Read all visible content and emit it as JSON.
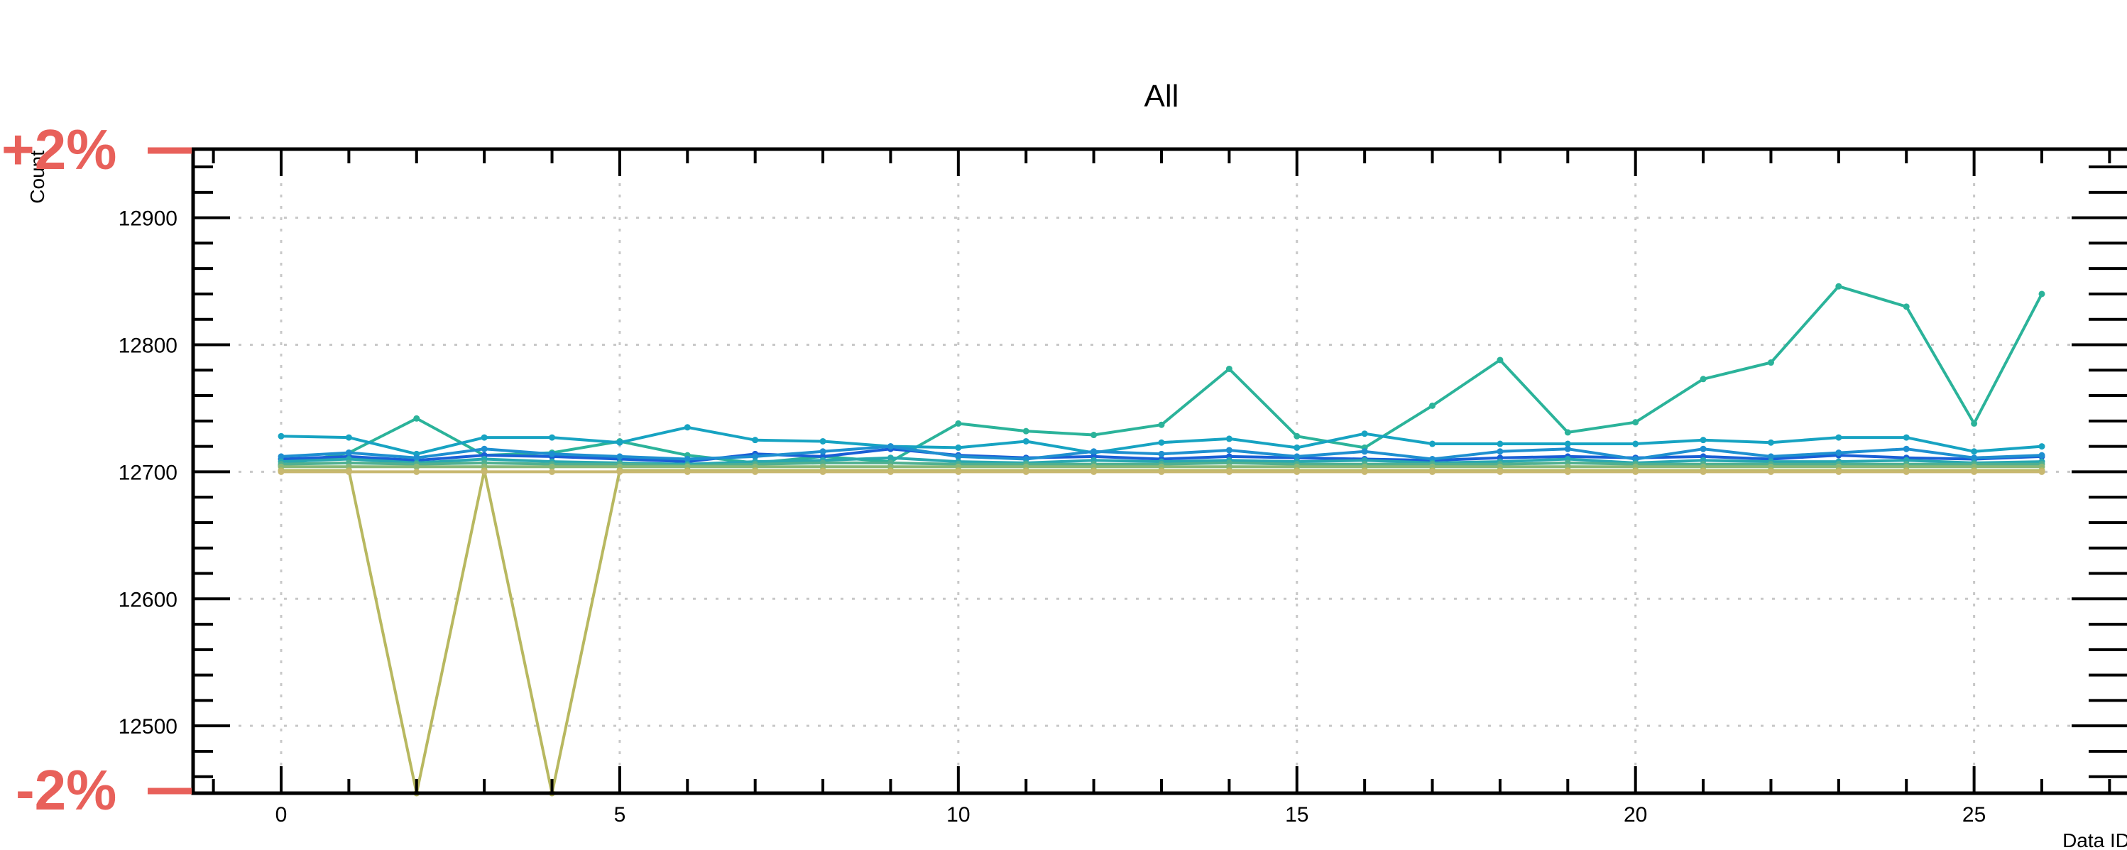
{
  "chart_data": {
    "type": "line",
    "title": "All",
    "xlabel": "Data ID",
    "ylabel": "Count",
    "xlim": [
      -1.3,
      27.3
    ],
    "ylim": [
      12447,
      12954
    ],
    "xticks": [
      0,
      5,
      10,
      15,
      20,
      25
    ],
    "yticks": [
      12500,
      12600,
      12700,
      12800,
      12900
    ],
    "xtick_labels": [
      "0",
      "5",
      "10",
      "15",
      "20",
      "25"
    ],
    "ytick_labels": [
      "12500",
      "12600",
      "12700",
      "12800",
      "12900"
    ],
    "grid": true,
    "band_labels": {
      "upper": "+2%",
      "lower": "-2%",
      "color": "#e8605a"
    },
    "colors": {
      "teal": "#2bb39a",
      "cyan": "#1aa6c4",
      "blue": "#1a5fd6",
      "olive": "#b8b860",
      "gold": "#c8b870"
    },
    "series": [
      {
        "color": "#2bb39a",
        "values": [
          12705,
          12715,
          12742,
          12713,
          12715,
          12724,
          12713,
          12707,
          12712,
          12708,
          12738,
          12732,
          12729,
          12737,
          12781,
          12728,
          12719,
          12752,
          12788,
          12731,
          12739,
          12773,
          12786,
          12846,
          12830,
          12738,
          12840
        ]
      },
      {
        "color": "#17a3c2",
        "values": [
          12728,
          12727,
          12714,
          12727,
          12727,
          12723,
          12735,
          12725,
          12724,
          12720,
          12719,
          12724,
          12715,
          12723,
          12726,
          12719,
          12730,
          12722,
          12722,
          12722,
          12722,
          12725,
          12723,
          12727,
          12727,
          12716,
          12720
        ]
      },
      {
        "color": "#1a5fd6",
        "values": [
          12710,
          12712,
          12709,
          12713,
          12712,
          12710,
          12708,
          12714,
          12712,
          12718,
          12713,
          12711,
          12712,
          12710,
          12712,
          12711,
          12710,
          12709,
          12711,
          12712,
          12711,
          12712,
          12710,
          12713,
          12711,
          12710,
          12712
        ]
      },
      {
        "color": "#1e8fd0",
        "values": [
          12712,
          12715,
          12711,
          12718,
          12714,
          12712,
          12710,
          12712,
          12716,
          12720,
          12712,
          12710,
          12716,
          12714,
          12717,
          12712,
          12716,
          12710,
          12716,
          12718,
          12710,
          12718,
          12712,
          12715,
          12718,
          12711,
          12713
        ]
      },
      {
        "color": "#28a8b0",
        "values": [
          12708,
          12710,
          12707,
          12710,
          12708,
          12707,
          12706,
          12708,
          12709,
          12711,
          12708,
          12707,
          12709,
          12708,
          12709,
          12708,
          12709,
          12707,
          12708,
          12710,
          12707,
          12709,
          12708,
          12708,
          12709,
          12707,
          12708
        ]
      },
      {
        "color": "#50b090",
        "values": [
          12706,
          12707,
          12706,
          12707,
          12706,
          12706,
          12705,
          12706,
          12707,
          12707,
          12706,
          12706,
          12706,
          12706,
          12707,
          12706,
          12706,
          12706,
          12706,
          12707,
          12706,
          12706,
          12706,
          12706,
          12706,
          12706,
          12706
        ]
      },
      {
        "color": "#8ab878",
        "values": [
          12704,
          12704,
          12704,
          12704,
          12704,
          12704,
          12704,
          12704,
          12704,
          12704,
          12704,
          12704,
          12704,
          12704,
          12704,
          12704,
          12704,
          12704,
          12704,
          12704,
          12704,
          12704,
          12704,
          12704,
          12704,
          12704,
          12704
        ]
      },
      {
        "color": "#b8b860",
        "values": [
          12701,
          12701,
          12447,
          12701,
          12447,
          12701,
          12701,
          12701,
          12701,
          12701,
          12701,
          12701,
          12701,
          12701,
          12701,
          12701,
          12701,
          12701,
          12701,
          12701,
          12701,
          12701,
          12701,
          12701,
          12701,
          12701,
          12701
        ]
      },
      {
        "color": "#c8b870",
        "values": [
          12700,
          12700,
          12700,
          12700,
          12700,
          12700,
          12700,
          12700,
          12700,
          12700,
          12700,
          12700,
          12700,
          12700,
          12700,
          12700,
          12700,
          12700,
          12700,
          12700,
          12700,
          12700,
          12700,
          12700,
          12700,
          12700,
          12700
        ]
      }
    ]
  }
}
